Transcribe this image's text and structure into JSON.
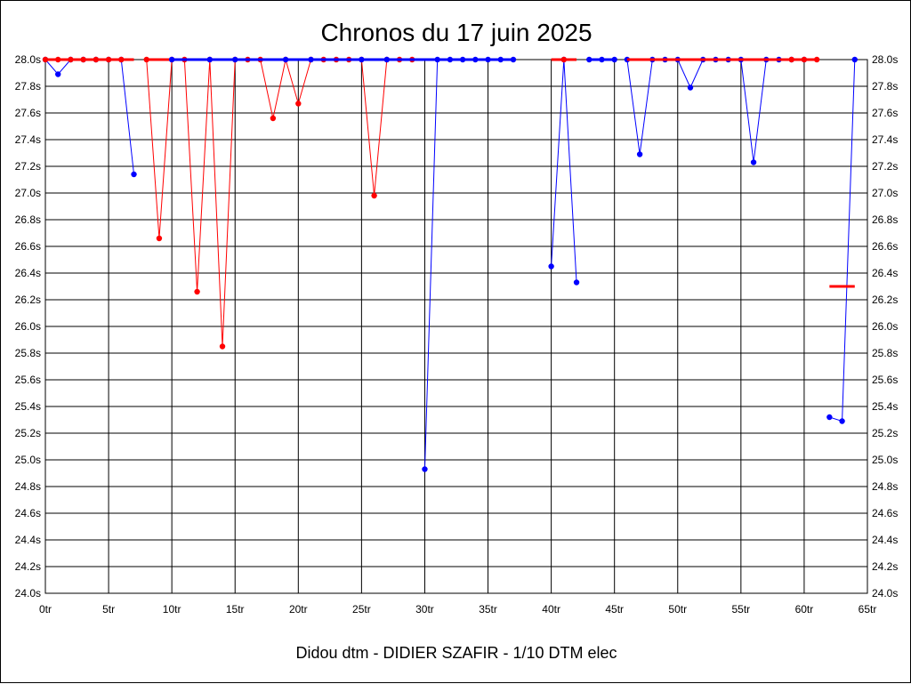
{
  "chart_data": {
    "type": "line",
    "title": "Chronos du 17 juin 2025",
    "footer": "Didou dtm - DIDIER SZAFIR - 1/10 DTM elec",
    "xlabel": "",
    "ylabel": "",
    "xlim": [
      0,
      65
    ],
    "ylim": [
      24.0,
      28.0
    ],
    "grid": true,
    "x_ticks": [
      {
        "value": 0,
        "label": "0tr"
      },
      {
        "value": 5,
        "label": "5tr"
      },
      {
        "value": 10,
        "label": "10tr"
      },
      {
        "value": 15,
        "label": "15tr"
      },
      {
        "value": 20,
        "label": "20tr"
      },
      {
        "value": 25,
        "label": "25tr"
      },
      {
        "value": 30,
        "label": "30tr"
      },
      {
        "value": 35,
        "label": "35tr"
      },
      {
        "value": 40,
        "label": "40tr"
      },
      {
        "value": 45,
        "label": "45tr"
      },
      {
        "value": 50,
        "label": "50tr"
      },
      {
        "value": 55,
        "label": "55tr"
      },
      {
        "value": 60,
        "label": "60tr"
      },
      {
        "value": 65,
        "label": "65tr"
      }
    ],
    "y_ticks": [
      {
        "value": 28.0,
        "label": "28.0s"
      },
      {
        "value": 27.8,
        "label": "27.8s"
      },
      {
        "value": 27.6,
        "label": "27.6s"
      },
      {
        "value": 27.4,
        "label": "27.4s"
      },
      {
        "value": 27.2,
        "label": "27.2s"
      },
      {
        "value": 27.0,
        "label": "27.0s"
      },
      {
        "value": 26.8,
        "label": "26.8s"
      },
      {
        "value": 26.6,
        "label": "26.6s"
      },
      {
        "value": 26.4,
        "label": "26.4s"
      },
      {
        "value": 26.2,
        "label": "26.2s"
      },
      {
        "value": 26.0,
        "label": "26.0s"
      },
      {
        "value": 25.8,
        "label": "25.8s"
      },
      {
        "value": 25.6,
        "label": "25.6s"
      },
      {
        "value": 25.4,
        "label": "25.4s"
      },
      {
        "value": 25.2,
        "label": "25.2s"
      },
      {
        "value": 25.0,
        "label": "25.0s"
      },
      {
        "value": 24.8,
        "label": "24.8s"
      },
      {
        "value": 24.6,
        "label": "24.6s"
      },
      {
        "value": 24.4,
        "label": "24.4s"
      },
      {
        "value": 24.2,
        "label": "24.2s"
      },
      {
        "value": 24.0,
        "label": "24.0s"
      }
    ],
    "series": [
      {
        "name": "blue-1",
        "color": "#0000ff",
        "points": [
          [
            0,
            28.0
          ],
          [
            1,
            27.89
          ],
          [
            2,
            28.0
          ],
          [
            3,
            28.0
          ],
          [
            4,
            28.0
          ],
          [
            5,
            28.0
          ],
          [
            6,
            28.0
          ],
          [
            7,
            27.14
          ]
        ],
        "cap_line": [
          0,
          7
        ]
      },
      {
        "name": "red-1",
        "color": "#ff0000",
        "points": [
          [
            0,
            28.0
          ],
          [
            1,
            28.0
          ],
          [
            2,
            28.0
          ],
          [
            3,
            28.0
          ],
          [
            4,
            28.0
          ],
          [
            5,
            28.0
          ],
          [
            6,
            28.0
          ]
        ],
        "cap_line": [
          0,
          7
        ]
      },
      {
        "name": "red-2",
        "color": "#ff0000",
        "points": [
          [
            8,
            28.0
          ],
          [
            9,
            26.66
          ],
          [
            10,
            28.0
          ],
          [
            11,
            28.0
          ],
          [
            12,
            26.26
          ],
          [
            13,
            28.0
          ],
          [
            14,
            25.85
          ],
          [
            15,
            28.0
          ],
          [
            16,
            28.0
          ],
          [
            17,
            28.0
          ],
          [
            18,
            27.56
          ],
          [
            19,
            28.0
          ],
          [
            20,
            27.67
          ],
          [
            21,
            28.0
          ],
          [
            22,
            28.0
          ],
          [
            23,
            28.0
          ],
          [
            24,
            28.0
          ],
          [
            25,
            28.0
          ],
          [
            26,
            26.98
          ],
          [
            27,
            28.0
          ],
          [
            28,
            28.0
          ],
          [
            29,
            28.0
          ]
        ],
        "cap_line": [
          8,
          30
        ]
      },
      {
        "name": "blue-2",
        "color": "#0000ff",
        "points": [
          [
            10,
            28.0
          ],
          [
            13,
            28.0
          ],
          [
            15,
            28.0
          ],
          [
            19,
            28.0
          ],
          [
            21,
            28.0
          ],
          [
            25,
            28.0
          ],
          [
            27,
            28.0
          ]
        ],
        "cap_line": [
          10,
          30
        ]
      },
      {
        "name": "blue-3",
        "color": "#0000ff",
        "points": [
          [
            30,
            24.93
          ],
          [
            31,
            28.0
          ],
          [
            32,
            28.0
          ],
          [
            33,
            28.0
          ],
          [
            34,
            28.0
          ],
          [
            35,
            28.0
          ],
          [
            36,
            28.0
          ],
          [
            37,
            28.0
          ]
        ],
        "cap_line": [
          30,
          37
        ]
      },
      {
        "name": "blue-4",
        "color": "#0000ff",
        "points": [
          [
            40,
            26.45
          ],
          [
            41,
            28.0
          ],
          [
            42,
            26.33
          ]
        ],
        "cap_line": []
      },
      {
        "name": "red-3",
        "color": "#ff0000",
        "points": [
          [
            41,
            28.0
          ]
        ],
        "cap_line": [
          40,
          42
        ]
      },
      {
        "name": "blue-5",
        "color": "#0000ff",
        "points": [
          [
            43,
            28.0
          ],
          [
            44,
            28.0
          ],
          [
            45,
            28.0
          ]
        ],
        "cap_line": [
          43,
          45
        ]
      },
      {
        "name": "blue-6",
        "color": "#0000ff",
        "points": [
          [
            46,
            28.0
          ],
          [
            47,
            27.29
          ],
          [
            48,
            28.0
          ],
          [
            49,
            28.0
          ],
          [
            50,
            28.0
          ],
          [
            51,
            27.79
          ],
          [
            52,
            28.0
          ],
          [
            53,
            28.0
          ],
          [
            54,
            28.0
          ],
          [
            55,
            28.0
          ],
          [
            56,
            27.23
          ],
          [
            57,
            28.0
          ],
          [
            58,
            28.0
          ],
          [
            59,
            28.0
          ],
          [
            60,
            28.0
          ]
        ],
        "cap_line": []
      },
      {
        "name": "red-4",
        "color": "#ff0000",
        "points": [
          [
            59,
            28.0
          ],
          [
            60,
            28.0
          ],
          [
            61,
            28.0
          ]
        ],
        "cap_line": [
          46,
          61
        ]
      },
      {
        "name": "blue-7",
        "color": "#0000ff",
        "points": [
          [
            62,
            25.32
          ],
          [
            63,
            25.29
          ],
          [
            64,
            28.0
          ]
        ],
        "cap_line": []
      },
      {
        "name": "red-5",
        "color": "#ff0000",
        "points": [],
        "cap_line": [
          62,
          64
        ],
        "cap_level": 26.3
      }
    ]
  }
}
